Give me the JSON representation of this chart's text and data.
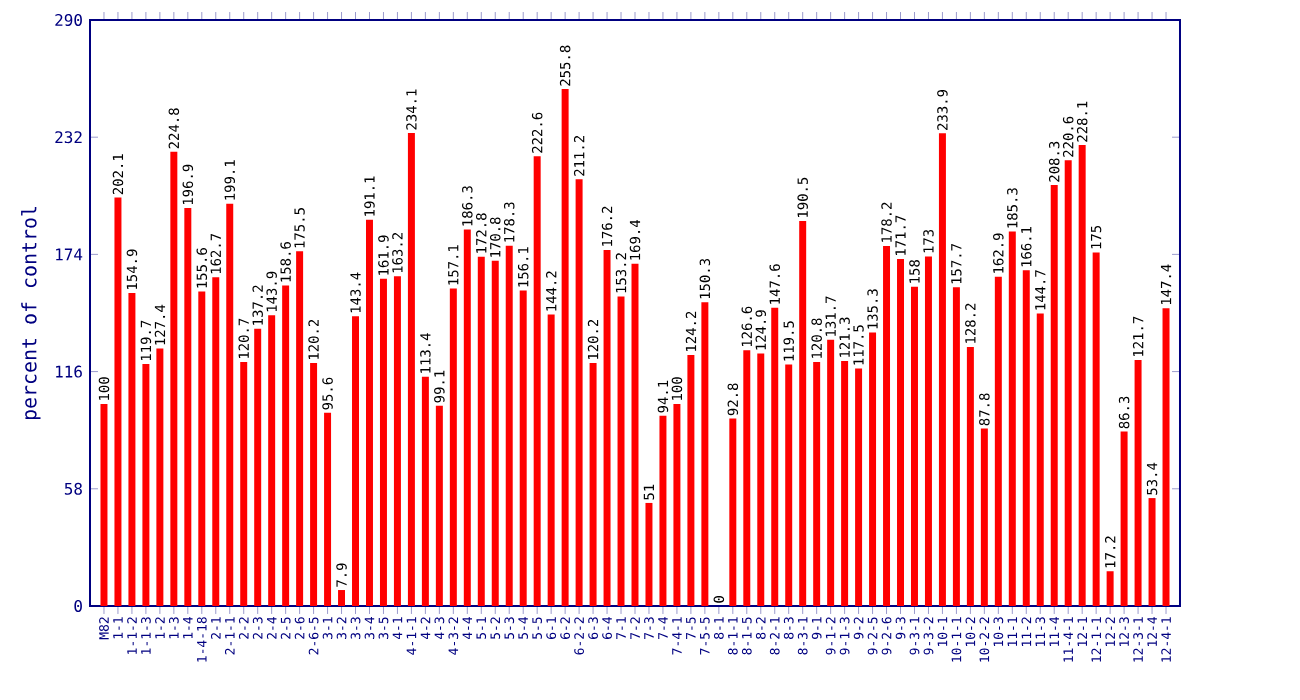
{
  "chart_data": {
    "type": "bar",
    "ylabel": "percent of control",
    "categories": [
      "M82",
      "1-1",
      "1-1-2",
      "1-1-3",
      "1-2",
      "1-3",
      "1-4",
      "1-4-18",
      "2-1",
      "2-1-1",
      "2-2",
      "2-3",
      "2-4",
      "2-5",
      "2-6",
      "2-6-5",
      "3-1",
      "3-2",
      "3-3",
      "3-4",
      "3-5",
      "4-1",
      "4-1-1",
      "4-2",
      "4-3",
      "4-3-2",
      "4-4",
      "5-1",
      "5-2",
      "5-3",
      "5-4",
      "5-5",
      "6-1",
      "6-2",
      "6-2-2",
      "6-3",
      "6-4",
      "7-1",
      "7-2",
      "7-3",
      "7-4",
      "7-4-1",
      "7-5",
      "7-5-5",
      "8-1",
      "8-1-1",
      "8-1-5",
      "8-2",
      "8-2-1",
      "8-3",
      "8-3-1",
      "9-1",
      "9-1-2",
      "9-1-3",
      "9-2",
      "9-2-5",
      "9-2-6",
      "9-3",
      "9-3-1",
      "9-3-2",
      "10-1",
      "10-1-1",
      "10-2",
      "10-2-2",
      "10-3",
      "11-1",
      "11-2",
      "11-3",
      "11-4",
      "11-4-1",
      "12-1",
      "12-1-1",
      "12-2",
      "12-3",
      "12-3-1",
      "12-4",
      "12-4-1"
    ],
    "values": [
      100,
      202.1,
      154.9,
      119.7,
      127.4,
      224.8,
      196.9,
      155.6,
      162.7,
      199.1,
      120.7,
      137.2,
      143.9,
      158.6,
      175.5,
      120.2,
      95.6,
      7.9,
      143.4,
      191.1,
      161.9,
      163.2,
      234.1,
      113.4,
      99.1,
      157.1,
      186.3,
      172.8,
      170.8,
      178.3,
      156.1,
      222.6,
      144.2,
      255.8,
      211.2,
      120.2,
      176.2,
      153.2,
      169.4,
      51,
      94.1,
      100,
      124.2,
      150.3,
      0,
      92.8,
      126.6,
      124.9,
      147.6,
      119.5,
      190.5,
      120.8,
      131.7,
      121.3,
      117.5,
      135.3,
      178.2,
      171.7,
      158,
      173,
      233.9,
      157.7,
      128.2,
      87.8,
      162.9,
      185.3,
      166.1,
      144.7,
      208.3,
      220.6,
      228.1,
      175,
      17.2,
      86.3,
      121.7,
      53.4,
      147.4
    ],
    "color": "#ff0000",
    "ylim": [
      0,
      290
    ],
    "yticks": [
      0,
      58,
      116,
      174,
      232,
      290
    ],
    "data_labels": true
  }
}
